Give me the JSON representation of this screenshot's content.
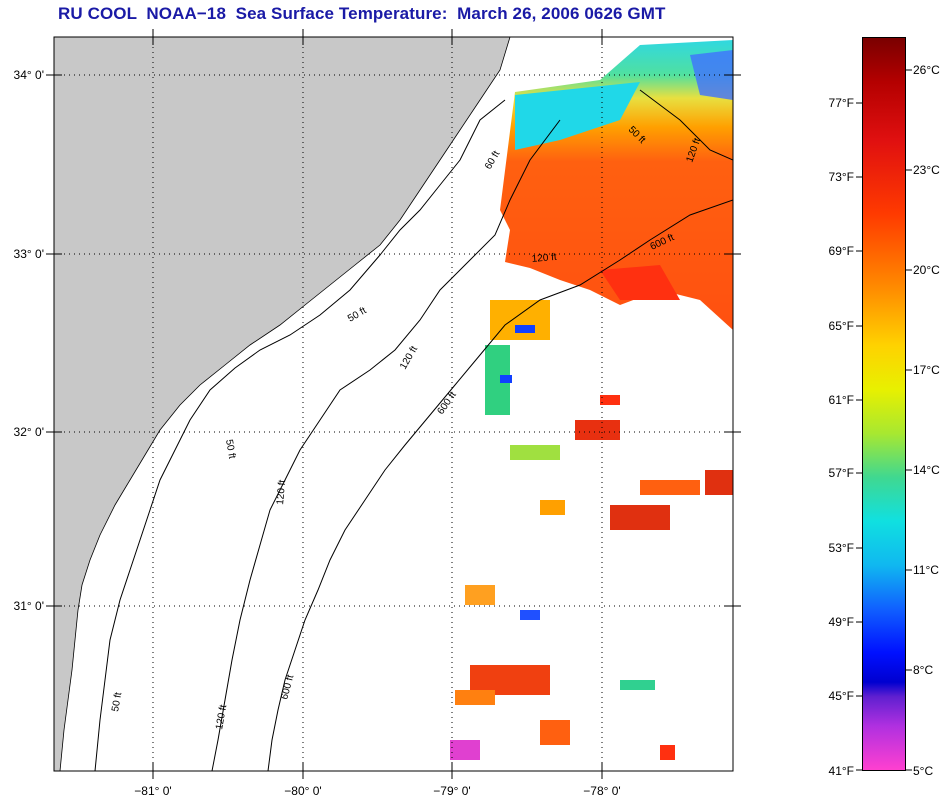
{
  "title": "RU COOL  NOAA−18  Sea Surface Temperature:  March 26, 2006 0626 GMT",
  "map": {
    "latitude_labels": [
      "34° 0'",
      "33° 0'",
      "32° 0'",
      "31° 0'"
    ],
    "longitude_labels": [
      "−81° 0'",
      "−80° 0'",
      "−79° 0'",
      "−78° 0'"
    ],
    "contour_labels": [
      "50 ft",
      "120 ft",
      "600 ft",
      "60 ft",
      "120 ft",
      "600 ft",
      "50 ft",
      "120 ft",
      "600 ft",
      "50 ft",
      "120 ft",
      "50 ft",
      "120 ft"
    ],
    "colors": {
      "land": "#c8c8c8",
      "title": "#1a1aa6",
      "grid": "#000000"
    }
  },
  "colorbar": {
    "fahrenheit_labels": [
      "77°F",
      "73°F",
      "69°F",
      "65°F",
      "61°F",
      "57°F",
      "53°F",
      "49°F",
      "45°F",
      "41°F"
    ],
    "celsius_labels": [
      "26°C",
      "23°C",
      "20°C",
      "17°C",
      "14°C",
      "11°C",
      "8°C",
      "5°C"
    ],
    "range_f": [
      41,
      81
    ],
    "range_c": [
      5,
      27
    ]
  }
}
